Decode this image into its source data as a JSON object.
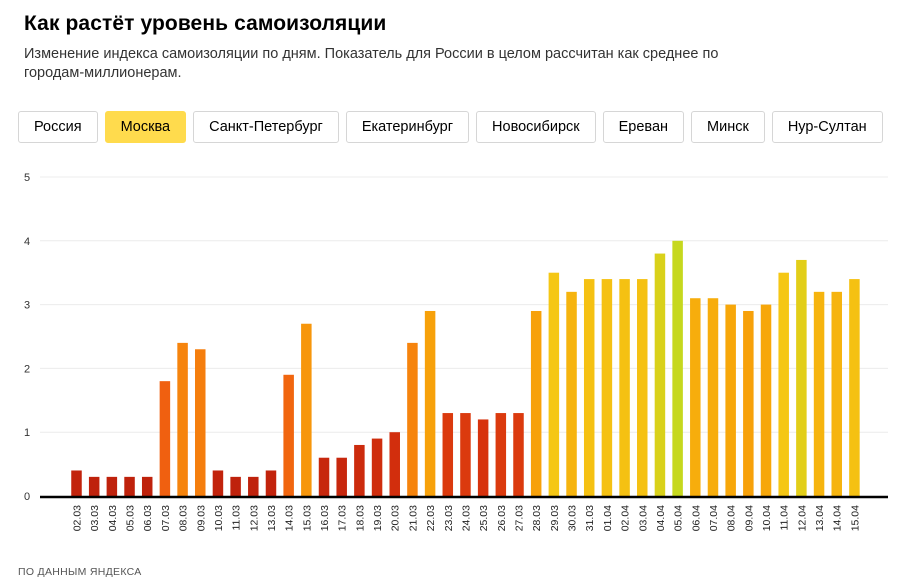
{
  "header": {
    "title": "Как растёт уровень самоизоляции",
    "subtitle": "Изменение индекса самоизоляции по дням. Показатель для России в целом рассчитан как среднее по городам-миллионерам."
  },
  "tabs": [
    {
      "label": "Россия",
      "active": false
    },
    {
      "label": "Москва",
      "active": true
    },
    {
      "label": "Санкт-Петербург",
      "active": false
    },
    {
      "label": "Екатеринбург",
      "active": false
    },
    {
      "label": "Новосибирск",
      "active": false
    },
    {
      "label": "Ереван",
      "active": false
    },
    {
      "label": "Минск",
      "active": false
    },
    {
      "label": "Нур-Султан",
      "active": false
    }
  ],
  "chart_data": {
    "type": "bar",
    "title": "",
    "xlabel": "",
    "ylabel": "",
    "ylim": [
      0,
      5
    ],
    "yticks": [
      0,
      1,
      2,
      3,
      4,
      5
    ],
    "grid": true,
    "categories": [
      "02.03",
      "03.03",
      "04.03",
      "05.03",
      "06.03",
      "07.03",
      "08.03",
      "09.03",
      "10.03",
      "11.03",
      "12.03",
      "13.03",
      "14.03",
      "15.03",
      "16.03",
      "17.03",
      "18.03",
      "19.03",
      "20.03",
      "21.03",
      "22.03",
      "23.03",
      "24.03",
      "25.03",
      "26.03",
      "27.03",
      "28.03",
      "29.03",
      "30.03",
      "31.03",
      "01.04",
      "02.04",
      "03.04",
      "04.04",
      "05.04",
      "06.04",
      "07.04",
      "08.04",
      "09.04",
      "10.04",
      "11.04",
      "12.04",
      "13.04",
      "14.04",
      "15.04"
    ],
    "values": [
      0.4,
      0.3,
      0.3,
      0.3,
      0.3,
      1.8,
      2.4,
      2.3,
      0.4,
      0.3,
      0.3,
      0.4,
      1.9,
      2.7,
      0.6,
      0.6,
      0.8,
      0.9,
      1.0,
      2.4,
      2.9,
      1.3,
      1.3,
      1.2,
      1.3,
      1.3,
      2.9,
      3.5,
      3.2,
      3.4,
      3.4,
      3.4,
      3.4,
      3.8,
      4.0,
      3.1,
      3.1,
      3.0,
      2.9,
      3.0,
      3.5,
      3.7,
      3.2,
      3.2,
      3.4
    ],
    "color_scale": {
      "stops": [
        {
          "value": 0,
          "color": "#b71c0c"
        },
        {
          "value": 1.2,
          "color": "#d7320d"
        },
        {
          "value": 1.8,
          "color": "#f06010"
        },
        {
          "value": 2.5,
          "color": "#f78a0c"
        },
        {
          "value": 3.0,
          "color": "#f7a70a"
        },
        {
          "value": 3.5,
          "color": "#f5c714"
        },
        {
          "value": 4.0,
          "color": "#c6d81e"
        }
      ]
    }
  },
  "footer": {
    "source": "ПО ДАННЫМ ЯНДЕКСА"
  }
}
